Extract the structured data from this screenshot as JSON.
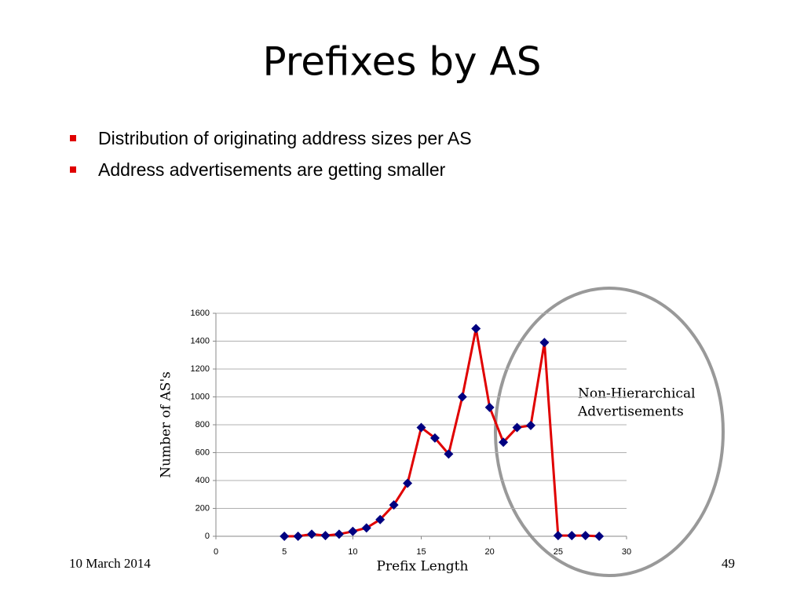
{
  "title": "Prefixes by AS",
  "bullets": [
    "Distribution of originating address sizes per AS",
    "Address advertisements are getting smaller"
  ],
  "footer": {
    "date": "10 March 2014",
    "page": "49"
  },
  "chart_data": {
    "type": "line",
    "x_label": "Prefix Length",
    "y_label": "Number of AS's",
    "annotation": [
      "Non-Hierarchical",
      "Advertisements"
    ],
    "x": [
      5,
      6,
      7,
      8,
      9,
      10,
      11,
      12,
      13,
      14,
      15,
      16,
      17,
      18,
      19,
      20,
      21,
      22,
      23,
      24,
      25,
      26,
      27,
      28
    ],
    "values": [
      0,
      0,
      15,
      5,
      15,
      35,
      60,
      120,
      225,
      380,
      780,
      705,
      590,
      1000,
      1490,
      925,
      675,
      780,
      795,
      1390,
      5,
      5,
      5,
      0
    ],
    "color": "#e00000",
    "marker_color": "#000080",
    "xlim": [
      0,
      30
    ],
    "xticks": [
      0,
      5,
      10,
      15,
      20,
      25,
      30
    ],
    "ylim": [
      0,
      1600
    ],
    "yticks": [
      0,
      200,
      400,
      600,
      800,
      1000,
      1200,
      1400,
      1600
    ],
    "grid": true
  }
}
